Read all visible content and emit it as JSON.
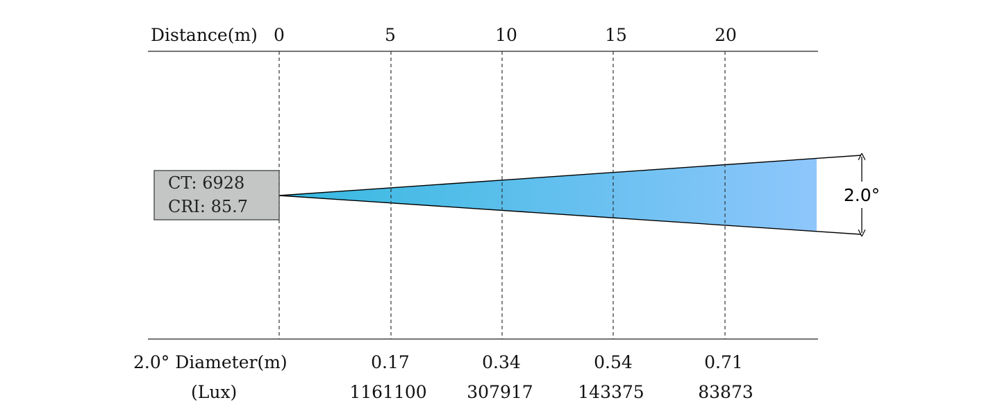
{
  "header": {
    "distance_label": "Distance(m)"
  },
  "distances": [
    "0",
    "5",
    "10",
    "15",
    "20"
  ],
  "info_box": {
    "ct_text": "CT: 6928",
    "cri_text": "CRI: 85.7"
  },
  "beam": {
    "angle_label": "2.0°",
    "gradient_start": "#35b9e0",
    "gradient_end": "#8ec6fb"
  },
  "footer": {
    "diameter_label": "2.0° Diameter(m)",
    "lux_label": "(Lux)"
  },
  "diameters": [
    "0.17",
    "0.34",
    "0.54",
    "0.71"
  ],
  "lux_values": [
    "1161100",
    "307917",
    "143375",
    "83873"
  ]
}
